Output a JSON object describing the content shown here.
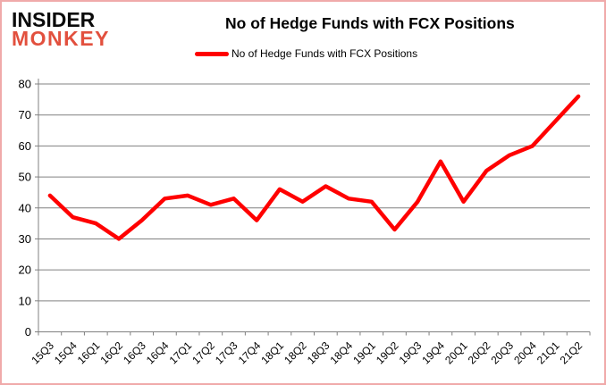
{
  "brand": {
    "line1": "INSIDER",
    "line2": "MONKEY"
  },
  "title": "No of Hedge Funds with FCX Positions",
  "legend": {
    "label": "No of Hedge Funds with FCX Positions"
  },
  "colors": {
    "line": "#ff0000",
    "brand_black": "#0a0a0a",
    "brand_red": "#e2503e",
    "grid": "#808080",
    "axis": "#808080",
    "text": "#000000",
    "frame_border": "#f0aaaa",
    "background": "#ffffff"
  },
  "chart_data": {
    "type": "line",
    "title": "No of Hedge Funds with FCX Positions",
    "xlabel": "",
    "ylabel": "",
    "ylim": [
      0,
      80
    ],
    "ytick_step": 10,
    "grid": true,
    "legend_position": "top",
    "categories": [
      "15Q3",
      "15Q4",
      "16Q1",
      "16Q2",
      "16Q3",
      "16Q4",
      "17Q1",
      "17Q2",
      "17Q3",
      "17Q4",
      "18Q1",
      "18Q2",
      "18Q3",
      "18Q4",
      "19Q1",
      "19Q2",
      "19Q3",
      "19Q4",
      "20Q1",
      "20Q2",
      "20Q3",
      "20Q4",
      "21Q1",
      "21Q2"
    ],
    "series": [
      {
        "name": "No of Hedge Funds with FCX Positions",
        "color": "#ff0000",
        "values": [
          44,
          37,
          35,
          30,
          36,
          43,
          44,
          41,
          43,
          36,
          46,
          42,
          47,
          43,
          42,
          33,
          42,
          55,
          42,
          52,
          57,
          60,
          68,
          76
        ]
      }
    ]
  }
}
